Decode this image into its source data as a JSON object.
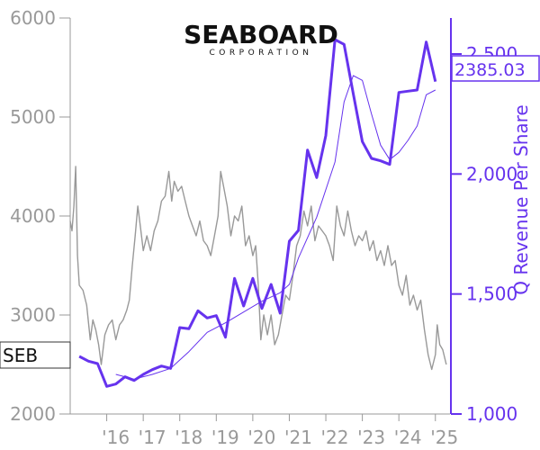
{
  "chart_data": {
    "type": "line",
    "title": "",
    "logo": {
      "name": "SEABOARD",
      "sub": "CORPORATION"
    },
    "left_axis": {
      "label": "",
      "min": 2000,
      "max": 6000,
      "ticks": [
        2000,
        3000,
        4000,
        5000,
        6000
      ],
      "tick_labels": [
        "2000",
        "3000",
        "4000",
        "5000",
        "6000"
      ],
      "color": "#999999"
    },
    "right_axis": {
      "label": "Q Revenue Per Share",
      "min": 1000,
      "max": 2650,
      "ticks": [
        1000,
        1500,
        2000,
        2500
      ],
      "tick_labels": [
        "1,000",
        "1,500",
        "2,000",
        "2,500"
      ],
      "color": "#6633ee"
    },
    "x_axis": {
      "min": 2015.0,
      "max": 2025.4,
      "ticks": [
        2016,
        2017,
        2018,
        2019,
        2020,
        2021,
        2022,
        2023,
        2024,
        2025
      ],
      "tick_labels": [
        "'16",
        "'17",
        "'18",
        "'19",
        "'20",
        "'21",
        "'22",
        "'23",
        "'24",
        "'25"
      ]
    },
    "series": [
      {
        "name": "SEB",
        "axis": "left",
        "color": "#999999",
        "label_box": "SEB",
        "points": [
          [
            2015.0,
            3950
          ],
          [
            2015.05,
            3850
          ],
          [
            2015.1,
            4100
          ],
          [
            2015.15,
            4500
          ],
          [
            2015.2,
            3600
          ],
          [
            2015.25,
            3300
          ],
          [
            2015.35,
            3250
          ],
          [
            2015.45,
            3100
          ],
          [
            2015.55,
            2750
          ],
          [
            2015.62,
            2950
          ],
          [
            2015.7,
            2850
          ],
          [
            2015.78,
            2700
          ],
          [
            2015.85,
            2500
          ],
          [
            2015.95,
            2800
          ],
          [
            2016.05,
            2900
          ],
          [
            2016.15,
            2950
          ],
          [
            2016.25,
            2750
          ],
          [
            2016.35,
            2900
          ],
          [
            2016.45,
            2950
          ],
          [
            2016.55,
            3050
          ],
          [
            2016.62,
            3150
          ],
          [
            2016.7,
            3500
          ],
          [
            2016.78,
            3800
          ],
          [
            2016.85,
            4100
          ],
          [
            2016.92,
            3900
          ],
          [
            2017.0,
            3650
          ],
          [
            2017.1,
            3800
          ],
          [
            2017.2,
            3650
          ],
          [
            2017.3,
            3850
          ],
          [
            2017.4,
            3950
          ],
          [
            2017.5,
            4150
          ],
          [
            2017.6,
            4200
          ],
          [
            2017.7,
            4450
          ],
          [
            2017.78,
            4150
          ],
          [
            2017.85,
            4350
          ],
          [
            2017.95,
            4250
          ],
          [
            2018.05,
            4300
          ],
          [
            2018.15,
            4150
          ],
          [
            2018.25,
            4000
          ],
          [
            2018.35,
            3900
          ],
          [
            2018.45,
            3800
          ],
          [
            2018.55,
            3950
          ],
          [
            2018.65,
            3750
          ],
          [
            2018.75,
            3700
          ],
          [
            2018.85,
            3600
          ],
          [
            2018.95,
            3800
          ],
          [
            2019.05,
            4000
          ],
          [
            2019.12,
            4450
          ],
          [
            2019.2,
            4300
          ],
          [
            2019.3,
            4100
          ],
          [
            2019.4,
            3800
          ],
          [
            2019.5,
            4000
          ],
          [
            2019.6,
            3950
          ],
          [
            2019.7,
            4100
          ],
          [
            2019.8,
            3700
          ],
          [
            2019.9,
            3800
          ],
          [
            2020.0,
            3600
          ],
          [
            2020.08,
            3700
          ],
          [
            2020.15,
            3300
          ],
          [
            2020.22,
            2750
          ],
          [
            2020.3,
            3000
          ],
          [
            2020.4,
            2800
          ],
          [
            2020.5,
            3000
          ],
          [
            2020.6,
            2700
          ],
          [
            2020.7,
            2800
          ],
          [
            2020.8,
            3000
          ],
          [
            2020.9,
            3200
          ],
          [
            2021.0,
            3150
          ],
          [
            2021.1,
            3400
          ],
          [
            2021.2,
            3700
          ],
          [
            2021.3,
            3800
          ],
          [
            2021.4,
            4050
          ],
          [
            2021.5,
            3900
          ],
          [
            2021.6,
            4100
          ],
          [
            2021.7,
            3750
          ],
          [
            2021.8,
            3900
          ],
          [
            2021.9,
            3850
          ],
          [
            2022.0,
            3800
          ],
          [
            2022.1,
            3700
          ],
          [
            2022.2,
            3550
          ],
          [
            2022.3,
            4100
          ],
          [
            2022.4,
            3900
          ],
          [
            2022.5,
            3800
          ],
          [
            2022.6,
            4050
          ],
          [
            2022.7,
            3850
          ],
          [
            2022.8,
            3700
          ],
          [
            2022.9,
            3800
          ],
          [
            2023.0,
            3750
          ],
          [
            2023.1,
            3850
          ],
          [
            2023.2,
            3650
          ],
          [
            2023.3,
            3750
          ],
          [
            2023.4,
            3550
          ],
          [
            2023.5,
            3650
          ],
          [
            2023.6,
            3500
          ],
          [
            2023.7,
            3700
          ],
          [
            2023.8,
            3500
          ],
          [
            2023.9,
            3550
          ],
          [
            2024.0,
            3300
          ],
          [
            2024.1,
            3200
          ],
          [
            2024.2,
            3400
          ],
          [
            2024.3,
            3100
          ],
          [
            2024.4,
            3200
          ],
          [
            2024.5,
            3050
          ],
          [
            2024.6,
            3150
          ],
          [
            2024.7,
            2850
          ],
          [
            2024.8,
            2600
          ],
          [
            2024.9,
            2450
          ],
          [
            2025.0,
            2600
          ],
          [
            2025.05,
            2900
          ],
          [
            2025.12,
            2700
          ],
          [
            2025.2,
            2650
          ],
          [
            2025.3,
            2500
          ]
        ]
      },
      {
        "name": "Q Revenue Per Share",
        "axis": "right",
        "color": "#6633ee",
        "value_box": "2385.03",
        "points": [
          [
            2015.25,
            1240
          ],
          [
            2015.5,
            1220
          ],
          [
            2015.75,
            1210
          ],
          [
            2016.0,
            1115
          ],
          [
            2016.25,
            1125
          ],
          [
            2016.5,
            1155
          ],
          [
            2016.75,
            1140
          ],
          [
            2017.0,
            1165
          ],
          [
            2017.25,
            1185
          ],
          [
            2017.5,
            1200
          ],
          [
            2017.75,
            1190
          ],
          [
            2018.0,
            1360
          ],
          [
            2018.25,
            1355
          ],
          [
            2018.5,
            1430
          ],
          [
            2018.75,
            1400
          ],
          [
            2019.0,
            1410
          ],
          [
            2019.25,
            1320
          ],
          [
            2019.5,
            1565
          ],
          [
            2019.75,
            1450
          ],
          [
            2020.0,
            1565
          ],
          [
            2020.25,
            1440
          ],
          [
            2020.5,
            1540
          ],
          [
            2020.75,
            1420
          ],
          [
            2021.0,
            1720
          ],
          [
            2021.25,
            1765
          ],
          [
            2021.5,
            2100
          ],
          [
            2021.75,
            1985
          ],
          [
            2022.0,
            2160
          ],
          [
            2022.25,
            2560
          ],
          [
            2022.5,
            2540
          ],
          [
            2022.75,
            2335
          ],
          [
            2023.0,
            2135
          ],
          [
            2023.25,
            2065
          ],
          [
            2023.5,
            2055
          ],
          [
            2023.75,
            2040
          ],
          [
            2024.0,
            2340
          ],
          [
            2024.25,
            2345
          ],
          [
            2024.5,
            2350
          ],
          [
            2024.75,
            2550
          ],
          [
            2025.0,
            2385
          ]
        ]
      },
      {
        "name": "",
        "axis": "right",
        "color": "#6633ee",
        "style": "thin",
        "points": [
          [
            2016.25,
            1165
          ],
          [
            2016.75,
            1145
          ],
          [
            2017.25,
            1165
          ],
          [
            2017.75,
            1190
          ],
          [
            2018.25,
            1260
          ],
          [
            2018.75,
            1340
          ],
          [
            2019.25,
            1380
          ],
          [
            2019.75,
            1425
          ],
          [
            2020.25,
            1470
          ],
          [
            2020.75,
            1505
          ],
          [
            2021.0,
            1540
          ],
          [
            2021.25,
            1650
          ],
          [
            2021.75,
            1820
          ],
          [
            2022.25,
            2050
          ],
          [
            2022.5,
            2300
          ],
          [
            2022.75,
            2410
          ],
          [
            2023.0,
            2390
          ],
          [
            2023.25,
            2250
          ],
          [
            2023.5,
            2120
          ],
          [
            2023.75,
            2060
          ],
          [
            2024.0,
            2090
          ],
          [
            2024.25,
            2140
          ],
          [
            2024.5,
            2200
          ],
          [
            2024.75,
            2330
          ],
          [
            2025.0,
            2350
          ]
        ]
      }
    ]
  }
}
